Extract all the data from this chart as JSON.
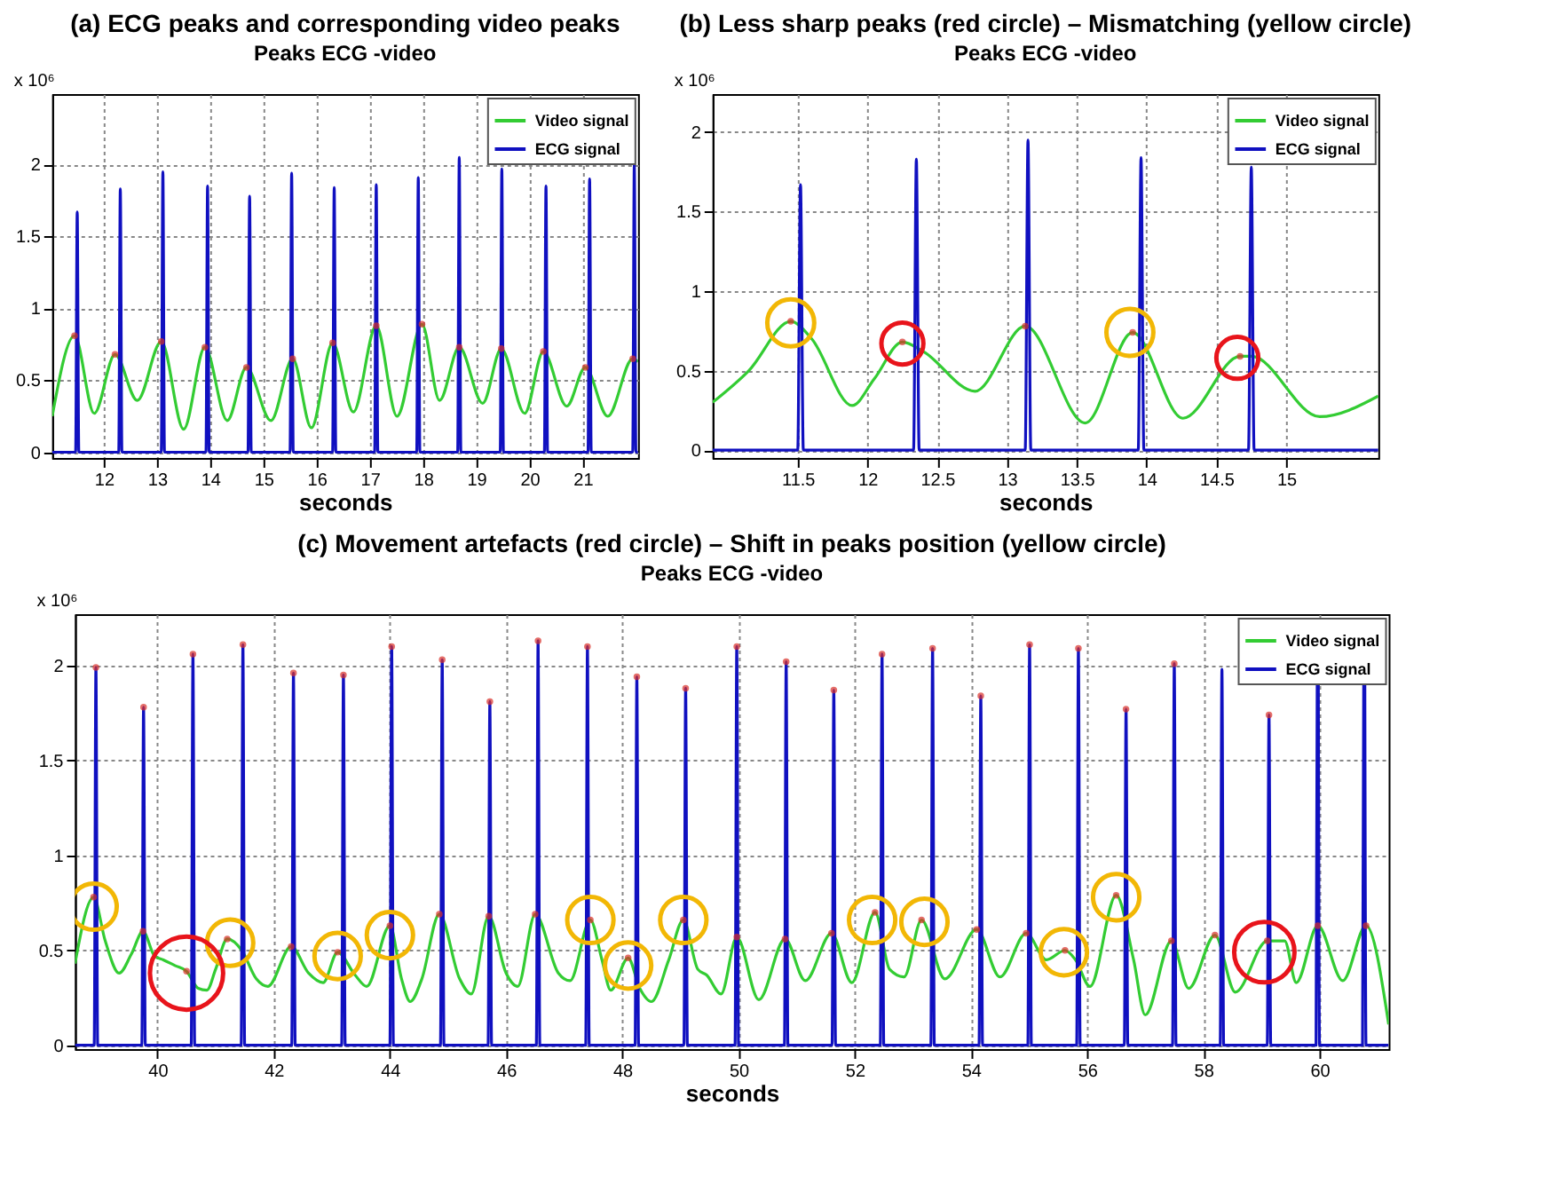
{
  "chart_data": [
    {
      "type": "line",
      "title": "(a) ECG peaks and corresponding video peaks",
      "subtitle": "Peaks ECG -video",
      "xlabel": "seconds",
      "ylabel": "x 10⁶",
      "xlim": [
        11.03,
        22.04
      ],
      "ylim": [
        -0.04,
        2.49
      ],
      "xticks": [
        12,
        13,
        14,
        15,
        16,
        17,
        18,
        19,
        20,
        21
      ],
      "yticks": [
        0,
        0.5,
        1,
        1.5,
        2
      ],
      "grid": true,
      "legend": "top right",
      "series": [
        {
          "name": "Video signal",
          "type": "line",
          "color": "#33cc33",
          "x": [
            11.03,
            11.45,
            11.82,
            12.21,
            12.63,
            13.08,
            13.5,
            13.9,
            14.32,
            14.68,
            15.14,
            15.55,
            15.9,
            16.3,
            16.69,
            17.12,
            17.51,
            17.98,
            18.31,
            18.68,
            19.12,
            19.47,
            19.91,
            20.26,
            20.7,
            21.05,
            21.47,
            21.94,
            22.04
          ],
          "values": [
            0.25,
            0.81,
            0.27,
            0.68,
            0.36,
            0.77,
            0.16,
            0.73,
            0.22,
            0.59,
            0.22,
            0.65,
            0.17,
            0.76,
            0.28,
            0.88,
            0.25,
            0.89,
            0.36,
            0.73,
            0.34,
            0.72,
            0.27,
            0.7,
            0.32,
            0.59,
            0.25,
            0.65,
            0.63
          ]
        },
        {
          "name": "ECG signal",
          "type": "line",
          "color": "#1010c0",
          "x": [
            11.03,
            11.47,
            11.5,
            11.53,
            12.28,
            12.31,
            12.34,
            13.08,
            13.11,
            13.14,
            13.92,
            13.95,
            13.98,
            14.71,
            14.74,
            14.77,
            15.5,
            15.53,
            15.56,
            16.3,
            16.33,
            16.36,
            17.09,
            17.12,
            17.15,
            17.88,
            17.91,
            17.94,
            18.65,
            18.68,
            18.71,
            19.45,
            19.48,
            19.51,
            20.28,
            20.31,
            20.34,
            21.1,
            21.13,
            21.16,
            21.94,
            21.97,
            22.0,
            22.04
          ],
          "values": [
            0,
            0,
            1.67,
            0,
            0,
            1.83,
            0,
            0,
            1.95,
            0,
            0,
            1.85,
            0,
            0,
            1.78,
            0,
            0,
            1.94,
            0,
            0,
            1.84,
            0,
            0,
            1.86,
            0,
            0,
            1.91,
            0,
            0,
            2.05,
            0,
            0,
            1.97,
            0,
            0,
            1.85,
            0,
            0,
            1.9,
            0,
            0,
            2.0,
            0,
            0
          ]
        },
        {
          "type": "scatter",
          "marker": "circle",
          "color": "#d9302a",
          "x": [
            11.45,
            12.21,
            13.08,
            13.9,
            14.68,
            15.55,
            16.3,
            17.12,
            17.98,
            18.68,
            19.47,
            20.26,
            21.05,
            21.94
          ],
          "values": [
            0.81,
            0.68,
            0.77,
            0.73,
            0.59,
            0.65,
            0.76,
            0.88,
            0.89,
            0.73,
            0.72,
            0.7,
            0.59,
            0.65
          ]
        }
      ]
    },
    {
      "type": "line",
      "title": "(b) Less sharp peaks (red circle) – Mismatching (yellow circle)",
      "subtitle": "Peaks ECG -video",
      "xlabel": "seconds",
      "ylabel": "x 10⁶",
      "xlim": [
        10.89,
        15.66
      ],
      "ylim": [
        -0.05,
        2.24
      ],
      "xticks": [
        11.5,
        12,
        12.5,
        13,
        13.5,
        14,
        14.5,
        15
      ],
      "yticks": [
        0,
        0.5,
        1,
        1.5,
        2
      ],
      "grid": true,
      "legend": "top right",
      "series": [
        {
          "name": "Video signal",
          "type": "line",
          "color": "#33cc33",
          "x": [
            10.89,
            11.15,
            11.45,
            11.6,
            11.89,
            12.05,
            12.25,
            12.4,
            12.77,
            13.13,
            13.56,
            13.9,
            14.26,
            14.67,
            14.75,
            15.24,
            15.66
          ],
          "values": [
            0.3,
            0.5,
            0.81,
            0.7,
            0.28,
            0.45,
            0.68,
            0.62,
            0.37,
            0.78,
            0.17,
            0.74,
            0.2,
            0.59,
            0.59,
            0.21,
            0.34
          ]
        },
        {
          "name": "ECG signal",
          "type": "line",
          "color": "#1010c0",
          "x": [
            10.89,
            11.5,
            11.52,
            11.54,
            12.33,
            12.35,
            12.37,
            13.13,
            13.15,
            13.17,
            13.94,
            13.96,
            13.98,
            14.73,
            14.75,
            14.77,
            15.66
          ],
          "values": [
            0,
            0,
            1.67,
            0,
            0,
            1.83,
            0,
            0,
            1.95,
            0,
            0,
            1.84,
            0,
            0,
            1.78,
            0,
            0
          ]
        },
        {
          "type": "scatter",
          "marker": "circle",
          "color": "#d9302a",
          "x": [
            11.45,
            12.25,
            13.13,
            13.9,
            14.67
          ],
          "values": [
            0.81,
            0.68,
            0.78,
            0.74,
            0.59
          ]
        },
        {
          "type": "bubble",
          "color": "#f2b705",
          "x": [
            11.45,
            13.88
          ],
          "values": [
            0.8,
            0.74
          ],
          "sizes": [
            1,
            1
          ]
        },
        {
          "type": "bubble",
          "color": "#e8141b",
          "x": [
            12.25,
            14.65
          ],
          "values": [
            0.67,
            0.58
          ],
          "sizes": [
            0.8,
            0.8
          ]
        }
      ]
    },
    {
      "type": "line",
      "title": "(c) Movement artefacts (red circle) – Shift in peaks position (yellow circle)",
      "subtitle": "Peaks ECG -video",
      "xlabel": "seconds",
      "ylabel": "x 10⁶",
      "xlim": [
        38.58,
        61.19
      ],
      "ylim": [
        -0.02,
        2.27
      ],
      "xticks": [
        40,
        42,
        44,
        46,
        48,
        50,
        52,
        54,
        56,
        58,
        60
      ],
      "yticks": [
        0,
        0.5,
        1,
        1.5,
        2
      ],
      "grid": true,
      "legend": "top right",
      "series": [
        {
          "name": "Video signal",
          "type": "line",
          "color": "#33cc33",
          "x": [
            38.58,
            38.9,
            39.1,
            39.34,
            39.55,
            39.75,
            39.95,
            40.1,
            40.3,
            40.5,
            40.7,
            40.85,
            41.0,
            41.2,
            41.45,
            41.7,
            41.9,
            42.3,
            42.6,
            42.85,
            43.1,
            43.4,
            43.6,
            44.0,
            44.2,
            44.35,
            44.55,
            44.85,
            45.2,
            45.4,
            45.7,
            46.0,
            46.2,
            46.5,
            46.9,
            47.1,
            47.45,
            47.65,
            47.8,
            48.1,
            48.3,
            48.5,
            48.8,
            49.05,
            49.3,
            49.45,
            49.7,
            49.97,
            50.35,
            50.8,
            51.15,
            51.6,
            51.95,
            52.35,
            52.6,
            52.85,
            53.15,
            53.55,
            54.1,
            54.5,
            54.95,
            55.3,
            55.62,
            55.8,
            56.05,
            56.5,
            56.8,
            57.0,
            57.45,
            57.75,
            58.2,
            58.55,
            59.1,
            59.4,
            59.6,
            59.97,
            60.4,
            60.8,
            61.19
          ],
          "values": [
            0.43,
            0.78,
            0.55,
            0.38,
            0.48,
            0.6,
            0.47,
            0.45,
            0.42,
            0.39,
            0.3,
            0.29,
            0.4,
            0.56,
            0.5,
            0.35,
            0.31,
            0.52,
            0.38,
            0.33,
            0.49,
            0.37,
            0.31,
            0.63,
            0.35,
            0.23,
            0.35,
            0.69,
            0.35,
            0.27,
            0.68,
            0.38,
            0.31,
            0.69,
            0.38,
            0.34,
            0.66,
            0.45,
            0.29,
            0.46,
            0.3,
            0.23,
            0.45,
            0.66,
            0.4,
            0.37,
            0.27,
            0.57,
            0.24,
            0.56,
            0.34,
            0.59,
            0.33,
            0.7,
            0.4,
            0.36,
            0.66,
            0.35,
            0.61,
            0.36,
            0.59,
            0.45,
            0.5,
            0.45,
            0.31,
            0.79,
            0.45,
            0.16,
            0.55,
            0.3,
            0.58,
            0.28,
            0.55,
            0.55,
            0.33,
            0.63,
            0.34,
            0.63,
            0.11
          ]
        },
        {
          "name": "ECG signal",
          "type": "line",
          "color": "#1010c0",
          "x": [
            38.58,
            38.91,
            38.94,
            38.97,
            39.73,
            39.76,
            39.79,
            40.58,
            40.61,
            40.64,
            41.44,
            41.47,
            41.5,
            42.31,
            42.34,
            42.37,
            43.17,
            43.2,
            43.23,
            44.0,
            44.03,
            44.06,
            44.87,
            44.9,
            44.93,
            45.69,
            45.72,
            45.75,
            46.52,
            46.55,
            46.58,
            47.37,
            47.4,
            47.43,
            48.22,
            48.25,
            48.28,
            49.06,
            49.09,
            49.12,
            49.94,
            49.97,
            50.0,
            50.79,
            50.82,
            50.85,
            51.61,
            51.64,
            51.67,
            52.44,
            52.47,
            52.5,
            53.31,
            53.34,
            53.37,
            54.14,
            54.17,
            54.2,
            54.98,
            55.01,
            55.04,
            55.82,
            55.85,
            55.88,
            56.64,
            56.67,
            56.7,
            57.47,
            57.5,
            57.53,
            58.29,
            58.32,
            58.35,
            59.1,
            59.13,
            59.16,
            59.94,
            59.96,
            59.97,
            59.98,
            60.0,
            60.74,
            60.76,
            60.77,
            60.78,
            60.8,
            61.19
          ],
          "values": [
            0,
            0,
            1.99,
            0,
            0,
            1.78,
            0,
            0,
            2.06,
            0,
            0,
            2.11,
            0,
            0,
            1.96,
            0,
            0,
            1.95,
            0,
            0,
            2.1,
            0,
            0,
            2.03,
            0,
            0,
            1.81,
            0,
            0,
            2.13,
            0,
            0,
            2.1,
            0,
            0,
            1.94,
            0,
            0,
            1.88,
            0,
            0,
            2.1,
            0,
            0,
            2.02,
            0,
            0,
            1.87,
            0,
            0,
            2.06,
            0,
            0,
            2.09,
            0,
            0,
            1.84,
            0,
            0,
            2.11,
            0,
            0,
            2.09,
            0,
            0,
            1.77,
            0,
            0,
            2.01,
            0,
            0,
            1.98,
            0,
            0,
            1.74,
            0,
            0,
            1.9,
            null,
            1.9,
            0,
            0,
            1.9,
            null,
            1.9,
            0,
            0
          ]
        },
        {
          "type": "scatter",
          "marker": "circle",
          "color": "#d9302a",
          "x": [
            38.94,
            39.76,
            40.61,
            41.47,
            42.34,
            43.2,
            44.03,
            44.9,
            45.72,
            46.55,
            47.4,
            48.25,
            49.09,
            49.97,
            50.82,
            51.64,
            52.47,
            53.34,
            54.17,
            55.01,
            55.85,
            56.67,
            57.5,
            59.13
          ],
          "values": [
            1.99,
            1.78,
            2.06,
            2.11,
            1.96,
            1.95,
            2.1,
            2.03,
            1.81,
            2.13,
            2.1,
            1.94,
            1.88,
            2.1,
            2.02,
            1.87,
            2.06,
            2.09,
            1.84,
            2.11,
            2.09,
            1.77,
            2.01,
            1.74
          ]
        },
        {
          "type": "scatter",
          "marker": "circle",
          "color": "#d9302a",
          "x": [
            38.9,
            39.75,
            40.5,
            41.2,
            42.3,
            43.1,
            44.0,
            44.85,
            45.7,
            46.5,
            47.45,
            48.1,
            49.05,
            49.97,
            50.8,
            51.6,
            52.35,
            53.15,
            54.1,
            54.95,
            55.62,
            56.5,
            57.45,
            58.2,
            59.1,
            59.97,
            60.8
          ],
          "values": [
            0.78,
            0.6,
            0.39,
            0.56,
            0.52,
            0.49,
            0.63,
            0.69,
            0.68,
            0.69,
            0.66,
            0.46,
            0.66,
            0.57,
            0.56,
            0.59,
            0.7,
            0.66,
            0.61,
            0.59,
            0.5,
            0.79,
            0.55,
            0.58,
            0.55,
            0.63,
            0.63
          ]
        },
        {
          "type": "bubble",
          "color": "#f2b705",
          "x": [
            38.9,
            41.25,
            43.1,
            44.0,
            47.45,
            48.1,
            49.05,
            52.3,
            53.2,
            55.6,
            56.5
          ],
          "values": [
            0.73,
            0.54,
            0.47,
            0.58,
            0.66,
            0.42,
            0.66,
            0.66,
            0.65,
            0.49,
            0.78
          ],
          "sizes": [
            0.4,
            0.4,
            0.4,
            0.4,
            0.4,
            0.4,
            0.4,
            0.4,
            0.4,
            0.4,
            0.4
          ]
        },
        {
          "type": "bubble",
          "color": "#e8141b",
          "x": [
            40.5,
            59.05
          ],
          "values": [
            0.38,
            0.49
          ],
          "sizes": [
            1,
            0.68
          ]
        }
      ]
    }
  ]
}
